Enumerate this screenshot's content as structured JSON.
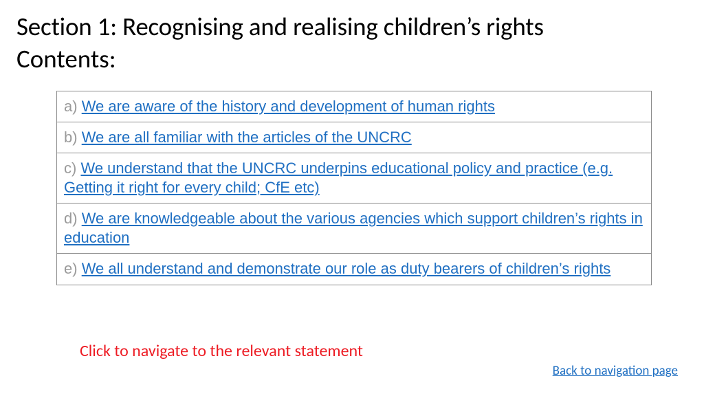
{
  "title": "Section 1: Recognising and realising children’s rights",
  "subtitle": "Contents:",
  "rows": [
    {
      "letter": "a)",
      "text": "We are aware of the history and development of human rights"
    },
    {
      "letter": "b)",
      "text": "We are all familiar with the articles of the UNCRC"
    },
    {
      "letter": "c)",
      "text": "We understand that the UNCRC underpins educational policy and practice (e.g. Getting it right for every child; CfE etc)"
    },
    {
      "letter": "d)",
      "text": "We are knowledgeable about the various agencies which support children’s rights in education"
    },
    {
      "letter": "e)",
      "text": "We all understand and demonstrate our role as duty bearers of children’s rights"
    }
  ],
  "instruction": "Click to navigate to the relevant statement",
  "back_link": "Back to navigation page",
  "colors": {
    "link": "#1f6fc2",
    "letter": "#9a9a9a",
    "instruction": "#ed1c24",
    "border": "#8b8b8b",
    "text": "#000000",
    "background": "#ffffff"
  }
}
